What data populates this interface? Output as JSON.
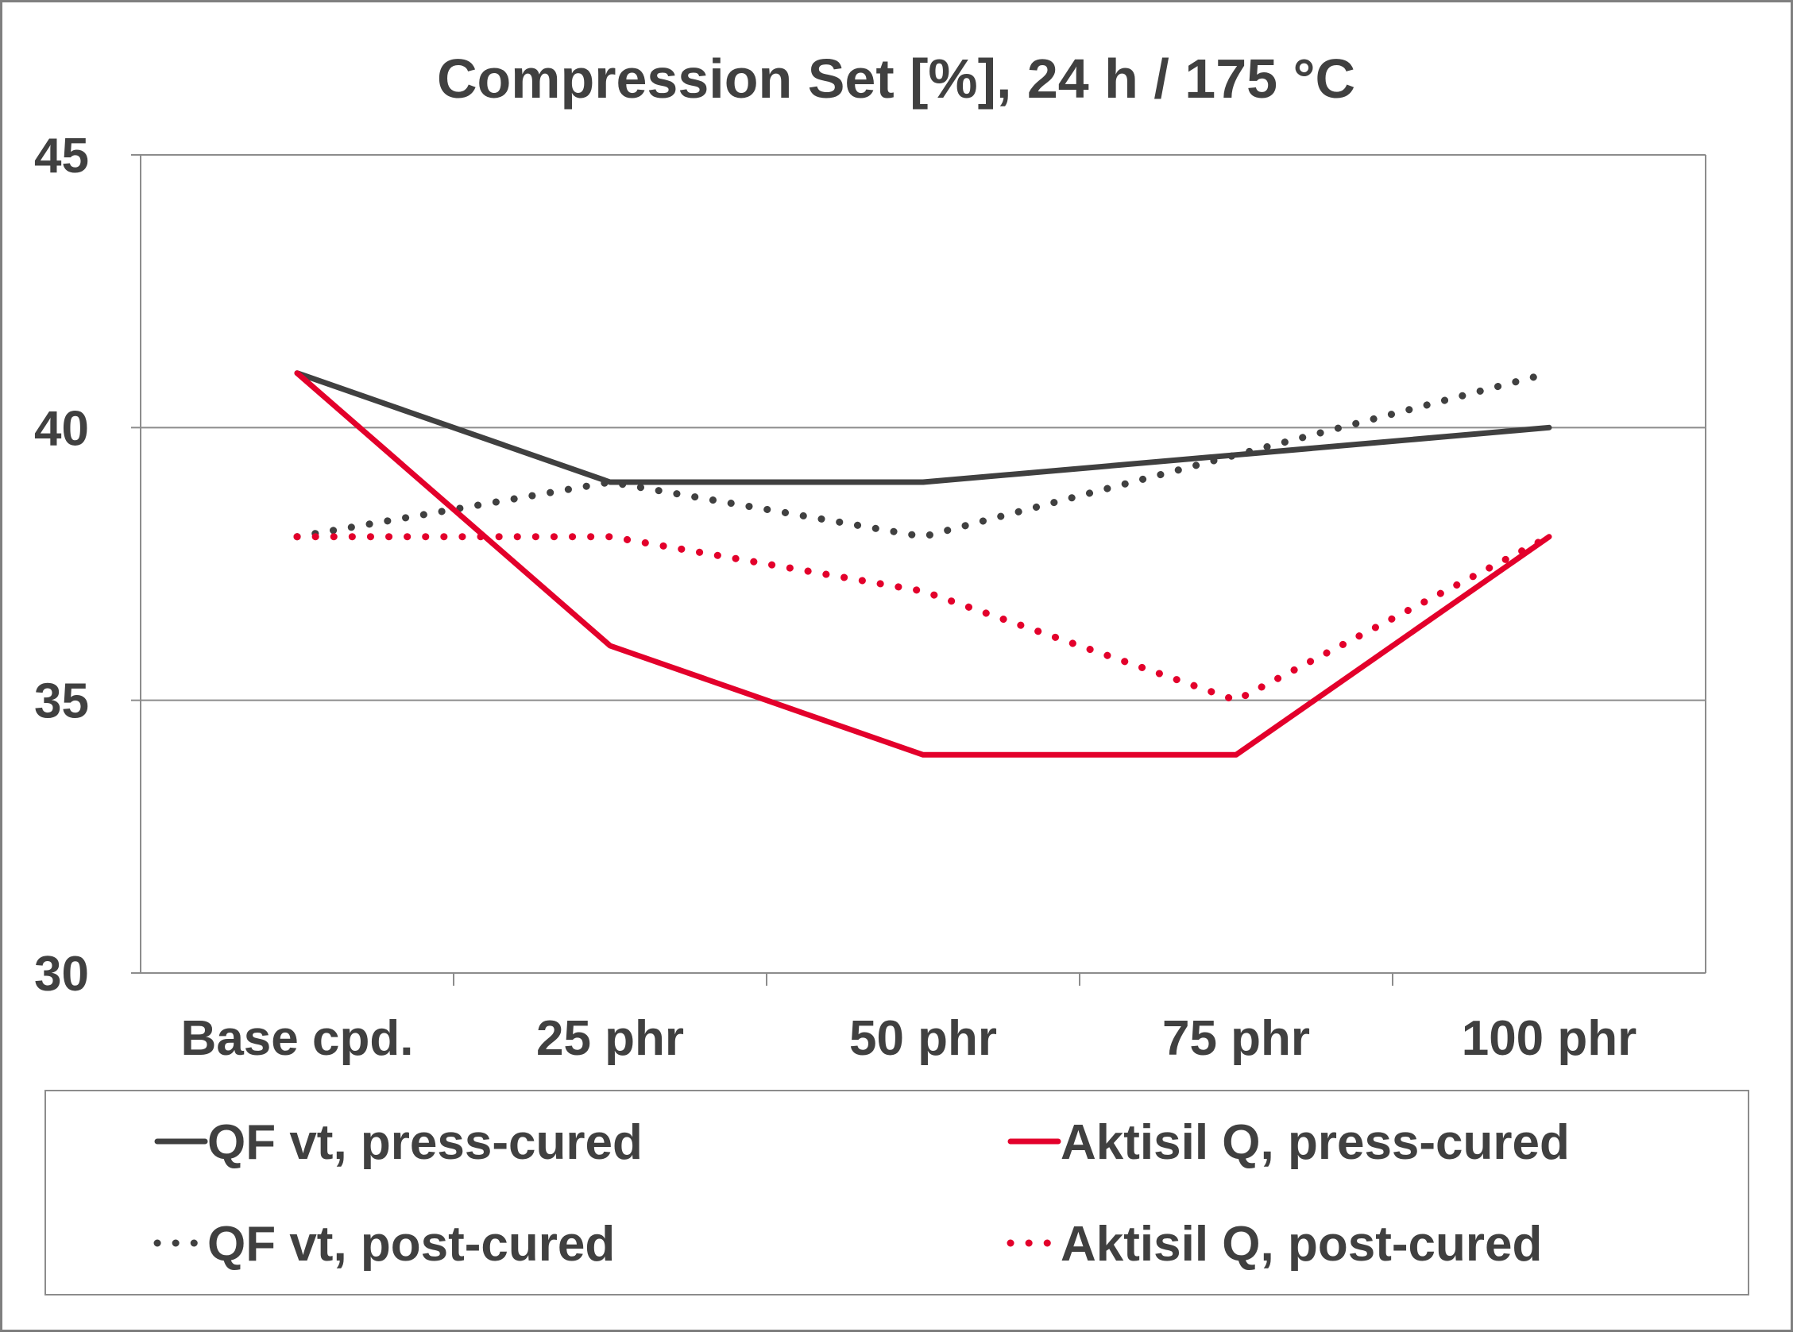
{
  "chart_data": {
    "type": "line",
    "title": "Compression Set [%], 24 h / 175 °C",
    "xlabel": "",
    "ylabel": "",
    "categories": [
      "Base cpd.",
      "25 phr",
      "50 phr",
      "75 phr",
      "100 phr"
    ],
    "ylim": [
      30,
      45
    ],
    "yticks": [
      "30",
      "35",
      "40",
      "45"
    ],
    "grid": "horizontal",
    "legend_position": "bottom",
    "series": [
      {
        "name": "QF vt, press-cured",
        "values": [
          41,
          39,
          39,
          39.5,
          40
        ],
        "color": "#404040",
        "style": "solid"
      },
      {
        "name": "QF vt, post-cured",
        "values": [
          38,
          39,
          38,
          39.5,
          41
        ],
        "color": "#404040",
        "style": "dotted"
      },
      {
        "name": "Aktisil Q, press-cured",
        "values": [
          41,
          36,
          34,
          34,
          38
        ],
        "color": "#e3002b",
        "style": "solid"
      },
      {
        "name": "Aktisil Q, post-cured",
        "values": [
          38,
          38,
          37,
          35,
          38
        ],
        "color": "#e3002b",
        "style": "dotted"
      }
    ]
  }
}
